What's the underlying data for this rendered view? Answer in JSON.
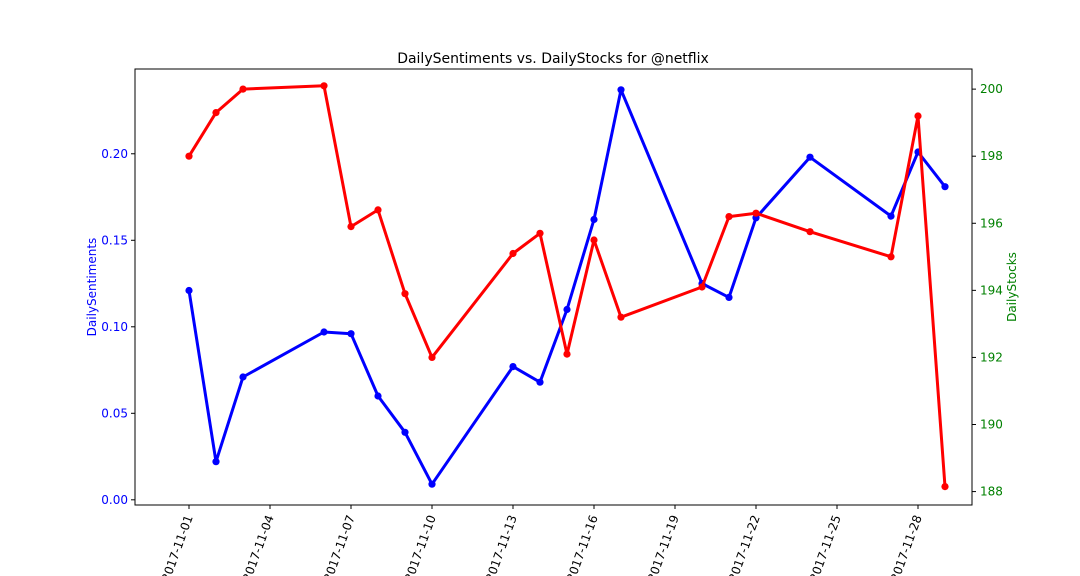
{
  "chart_data": {
    "type": "line",
    "title": "DailySentiments vs. DailyStocks for @netflix",
    "xlabel": "",
    "x_tick_labels": [
      "2017-11-01",
      "2017-11-04",
      "2017-11-07",
      "2017-11-10",
      "2017-11-13",
      "2017-11-16",
      "2017-11-19",
      "2017-11-22",
      "2017-11-25",
      "2017-11-28"
    ],
    "y_left": {
      "label": "DailySentiments",
      "color": "#0000ff",
      "ylim": [
        -0.003,
        0.249
      ],
      "tick_labels": [
        "0.00",
        "0.05",
        "0.10",
        "0.15",
        "0.20"
      ]
    },
    "y_right": {
      "label": "DailyStocks",
      "color": "#008000",
      "ylim": [
        187.6,
        200.6
      ],
      "tick_labels": [
        "188",
        "190",
        "192",
        "194",
        "196",
        "198",
        "200"
      ]
    },
    "xlim": [
      "2017-10-30",
      "2017-11-30"
    ],
    "grid": false,
    "series": [
      {
        "axis": "left",
        "color": "#0000ff",
        "points": [
          [
            "2017-11-01",
            0.121
          ],
          [
            "2017-11-02",
            0.022
          ],
          [
            "2017-11-03",
            0.071
          ],
          [
            "2017-11-06",
            0.097
          ],
          [
            "2017-11-07",
            0.096
          ],
          [
            "2017-11-08",
            0.06
          ],
          [
            "2017-11-09",
            0.039
          ],
          [
            "2017-11-10",
            0.009
          ],
          [
            "2017-11-13",
            0.077
          ],
          [
            "2017-11-14",
            0.068
          ],
          [
            "2017-11-15",
            0.11
          ],
          [
            "2017-11-16",
            0.162
          ],
          [
            "2017-11-17",
            0.237
          ],
          [
            "2017-11-20",
            0.125
          ],
          [
            "2017-11-21",
            0.117
          ],
          [
            "2017-11-22",
            0.163
          ],
          [
            "2017-11-24",
            0.198
          ],
          [
            "2017-11-27",
            0.164
          ],
          [
            "2017-11-28",
            0.201
          ],
          [
            "2017-11-29",
            0.181
          ]
        ]
      },
      {
        "axis": "right",
        "color": "#ff0000",
        "points": [
          [
            "2017-11-01",
            198.0
          ],
          [
            "2017-11-02",
            199.3
          ],
          [
            "2017-11-03",
            200.0
          ],
          [
            "2017-11-06",
            200.1
          ],
          [
            "2017-11-07",
            195.9
          ],
          [
            "2017-11-08",
            196.4
          ],
          [
            "2017-11-09",
            193.9
          ],
          [
            "2017-11-10",
            192.0
          ],
          [
            "2017-11-13",
            195.1
          ],
          [
            "2017-11-14",
            195.7
          ],
          [
            "2017-11-15",
            192.1
          ],
          [
            "2017-11-16",
            195.5
          ],
          [
            "2017-11-17",
            193.2
          ],
          [
            "2017-11-20",
            194.1
          ],
          [
            "2017-11-21",
            196.2
          ],
          [
            "2017-11-22",
            196.3
          ],
          [
            "2017-11-24",
            195.75
          ],
          [
            "2017-11-27",
            195.0
          ],
          [
            "2017-11-28",
            199.2
          ],
          [
            "2017-11-29",
            188.15
          ]
        ]
      }
    ]
  }
}
